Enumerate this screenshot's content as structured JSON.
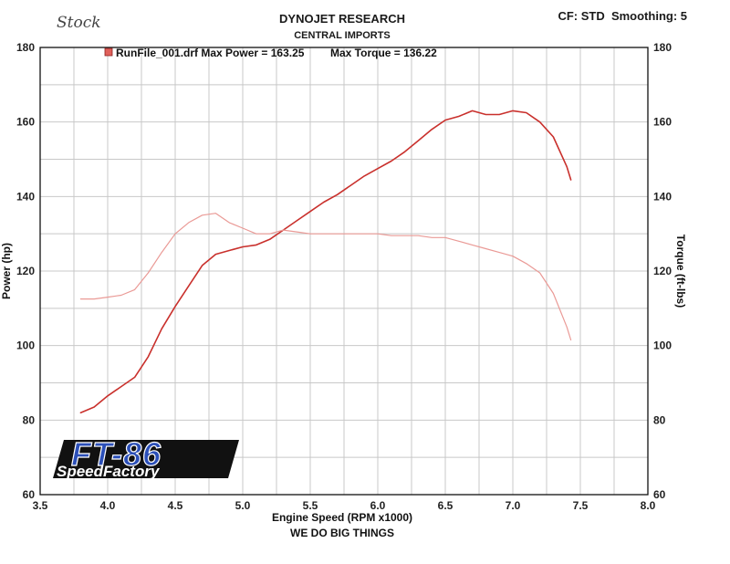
{
  "handwritten_note": "Stock",
  "header": {
    "title": "DYNOJET RESEARCH",
    "subtitle": "CENTRAL IMPORTS",
    "settings": "CF: STD  Smoothing: 5"
  },
  "legend": {
    "label": "RunFile_001.drf Max Power = 163.25",
    "torque_label": "Max Torque = 136.22",
    "color": "#e0605a"
  },
  "footer": "WE DO BIG THINGS",
  "logo": {
    "main": "FT-86",
    "sub": "SpeedFactory",
    "colors": {
      "main": "#2b4fb8",
      "background": "#111111"
    }
  },
  "chart_data": {
    "type": "line",
    "title": "DYNOJET RESEARCH",
    "subtitle": "CENTRAL IMPORTS",
    "xlabel": "Engine Speed (RPM x1000)",
    "ylabel_left": "Power (hp)",
    "ylabel_right": "Torque (ft-lbs)",
    "xlim": [
      3.5,
      8.0
    ],
    "ylim_left": [
      60,
      180
    ],
    "ylim_right": [
      60,
      180
    ],
    "x_ticks": [
      "3.5",
      "4.0",
      "4.5",
      "5.0",
      "5.5",
      "6.0",
      "6.5",
      "7.0",
      "7.5",
      "8.0"
    ],
    "y_ticks_left": [
      "60",
      "80",
      "100",
      "120",
      "140",
      "160",
      "180"
    ],
    "y_ticks_right": [
      "60",
      "80",
      "100",
      "120",
      "140",
      "160",
      "180"
    ],
    "grid": true,
    "series": [
      {
        "name": "Power",
        "color": "#c9302c",
        "x": [
          3.8,
          3.9,
          4.0,
          4.1,
          4.2,
          4.3,
          4.4,
          4.5,
          4.6,
          4.7,
          4.8,
          4.9,
          5.0,
          5.1,
          5.2,
          5.3,
          5.4,
          5.5,
          5.6,
          5.7,
          5.8,
          5.9,
          6.0,
          6.1,
          6.2,
          6.3,
          6.4,
          6.5,
          6.6,
          6.7,
          6.8,
          6.9,
          7.0,
          7.1,
          7.2,
          7.3,
          7.4,
          7.43
        ],
        "values": [
          82,
          83.5,
          86.5,
          89,
          91.5,
          97,
          104.5,
          110.5,
          116,
          121.5,
          124.5,
          125.5,
          126.5,
          127,
          128.5,
          131,
          133.5,
          136,
          138.5,
          140.5,
          143,
          145.5,
          147.5,
          149.5,
          152,
          155,
          158,
          160.5,
          161.5,
          163,
          162,
          162,
          163,
          162.5,
          160,
          156,
          148,
          144.5
        ]
      },
      {
        "name": "Torque",
        "color": "#ea9a96",
        "x": [
          3.8,
          3.9,
          4.0,
          4.1,
          4.2,
          4.3,
          4.4,
          4.5,
          4.6,
          4.7,
          4.8,
          4.9,
          5.0,
          5.1,
          5.2,
          5.3,
          5.4,
          5.5,
          5.6,
          5.7,
          5.8,
          5.9,
          6.0,
          6.1,
          6.2,
          6.3,
          6.4,
          6.5,
          6.6,
          6.7,
          6.8,
          6.9,
          7.0,
          7.1,
          7.2,
          7.3,
          7.4,
          7.43
        ],
        "values": [
          112.5,
          112.5,
          113,
          113.5,
          115,
          119.5,
          125,
          130,
          133,
          135,
          135.5,
          133,
          131.5,
          130,
          130,
          131,
          130.5,
          130,
          130,
          130,
          130,
          130,
          130,
          129.5,
          129.5,
          129.5,
          129,
          129,
          128,
          127,
          126,
          125,
          124,
          122,
          119.5,
          114,
          105,
          101.5
        ]
      }
    ]
  }
}
